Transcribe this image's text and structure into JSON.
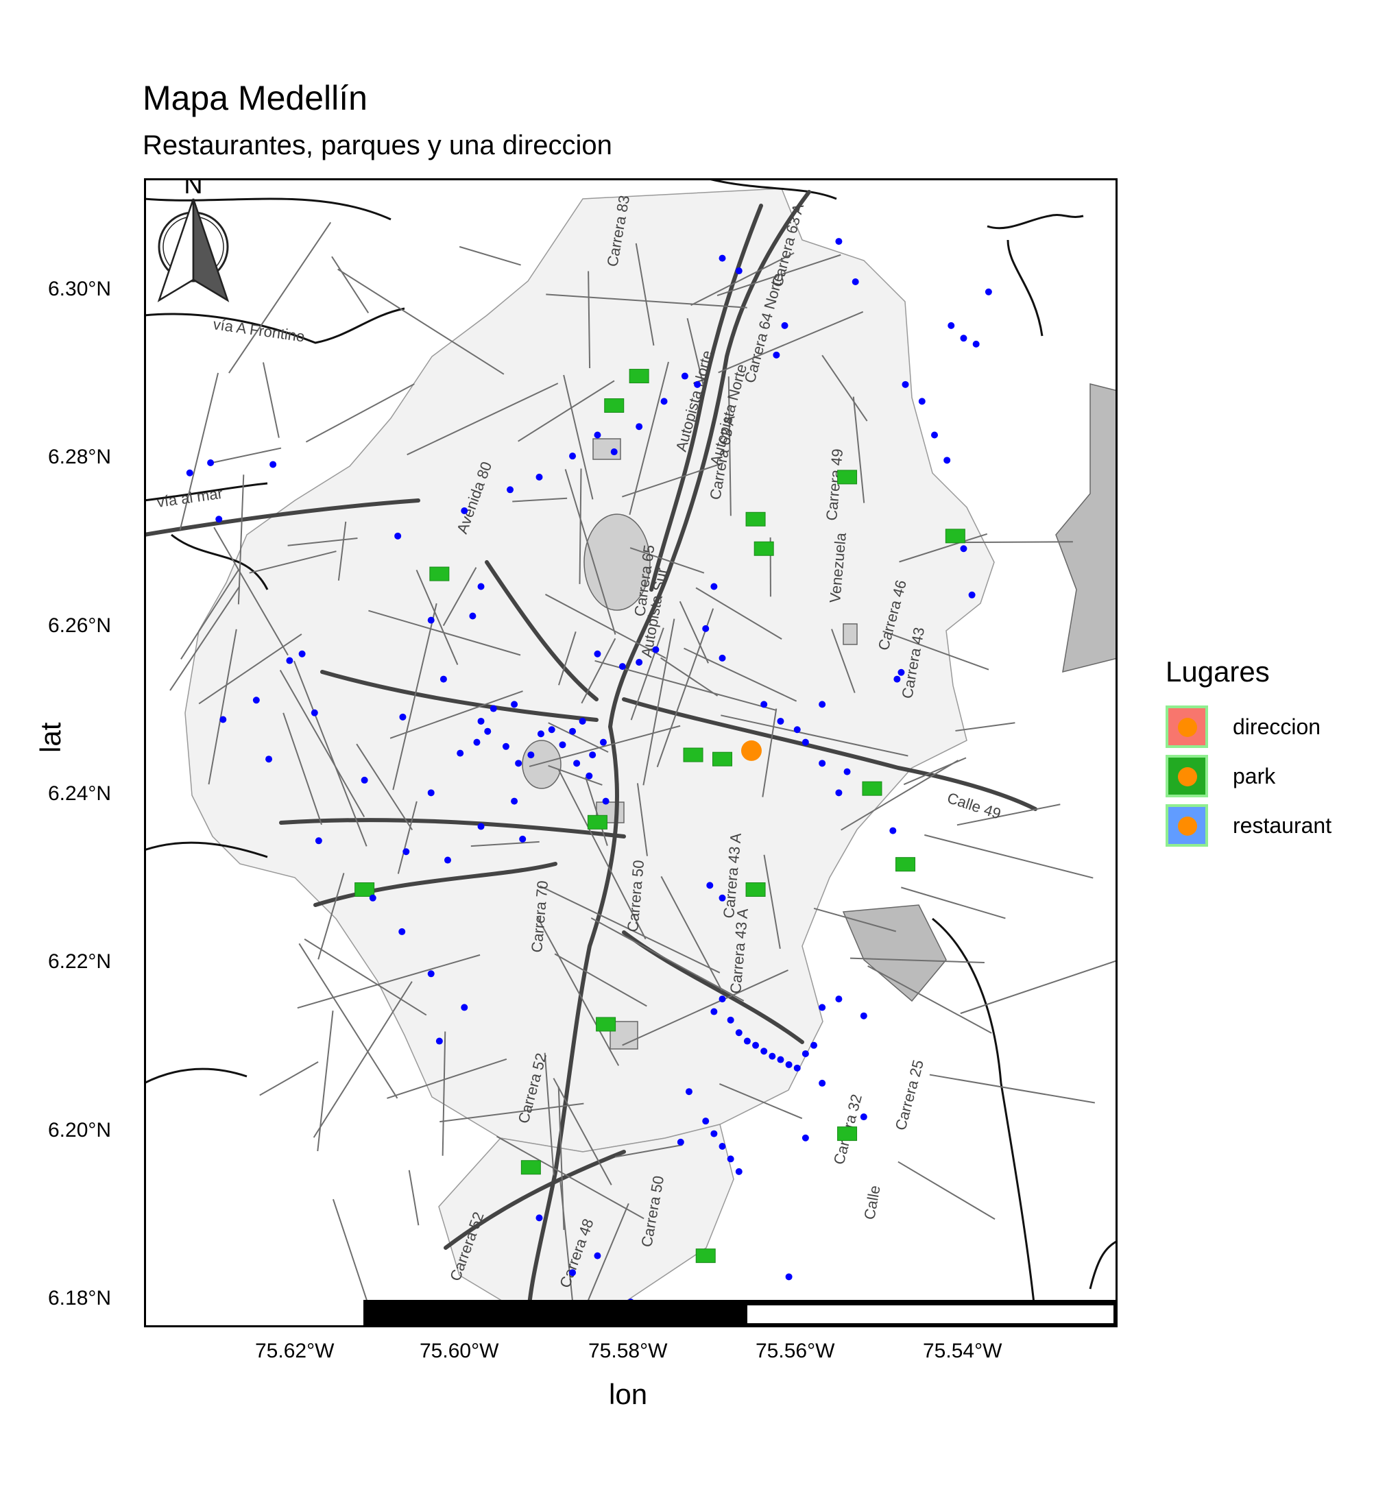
{
  "title": "Mapa Medellín",
  "subtitle": "Restaurantes, parques y una direccion",
  "x_axis_title": "lon",
  "y_axis_title": "lat",
  "x_ticks": [
    "75.62°W",
    "75.60°W",
    "75.58°W",
    "75.56°W",
    "75.54°W"
  ],
  "y_ticks": [
    "6.30°N",
    "6.28°N",
    "6.26°N",
    "6.24°N",
    "6.22°N",
    "6.20°N",
    "6.18°N"
  ],
  "north_arrow_label": "N",
  "legend": {
    "title": "Lugares",
    "items": [
      {
        "label": "direccion",
        "fill": "#f8766d"
      },
      {
        "label": "park",
        "fill": "#22aa22"
      },
      {
        "label": "restaurant",
        "fill": "#619cff"
      }
    ]
  },
  "street_labels": [
    "vía A Frontino",
    "vía al mar",
    "Autopista Norte",
    "Autopista Norte",
    "Carrera 64 Norte",
    "Carrera 63 A",
    "Carrera 63 A",
    "Autopista Sur",
    "Avenida 80",
    "Carrera 65",
    "Carrera 49",
    "Venezuela",
    "Carrera 46",
    "Carrera 43",
    "Calle 49",
    "Carrera 70",
    "Carrera 52",
    "Carrera 52",
    "Carrera 48",
    "Carrera 43 A",
    "Carrera 43 A",
    "Carrera 32",
    "Carrera 25",
    "Carrera 50",
    "Carrera 50",
    "Calle",
    "Carrera 83"
  ],
  "colors": {
    "restaurant_points": "#0000ff",
    "direccion_point": "#ff8c00",
    "park_areas": "#22bb22",
    "roads": "#444444",
    "urban_area": "#f2f2f2"
  },
  "map_data": {
    "direccion": {
      "lon": -75.5665,
      "lat": 6.2445
    },
    "restaurants": [
      {
        "lon": -75.6084,
        "lat": 6.2485
      },
      {
        "lon": -75.6015,
        "lat": 6.2442
      },
      {
        "lon": -75.5995,
        "lat": 6.2455
      },
      {
        "lon": -75.5982,
        "lat": 6.2468
      },
      {
        "lon": -75.596,
        "lat": 6.245
      },
      {
        "lon": -75.5945,
        "lat": 6.243
      },
      {
        "lon": -75.593,
        "lat": 6.244
      },
      {
        "lon": -75.5918,
        "lat": 6.2465
      },
      {
        "lon": -75.5905,
        "lat": 6.247
      },
      {
        "lon": -75.5892,
        "lat": 6.2452
      },
      {
        "lon": -75.588,
        "lat": 6.2468
      },
      {
        "lon": -75.5868,
        "lat": 6.248
      },
      {
        "lon": -75.5856,
        "lat": 6.244
      },
      {
        "lon": -75.5843,
        "lat": 6.2455
      },
      {
        "lon": -75.599,
        "lat": 6.248
      },
      {
        "lon": -75.5975,
        "lat": 6.2495
      },
      {
        "lon": -75.595,
        "lat": 6.25
      },
      {
        "lon": -75.5875,
        "lat": 6.243
      },
      {
        "lon": -75.586,
        "lat": 6.2415
      },
      {
        "lon": -75.584,
        "lat": 6.2385
      },
      {
        "lon": -75.6035,
        "lat": 6.253
      },
      {
        "lon": -75.605,
        "lat": 6.26
      },
      {
        "lon": -75.6,
        "lat": 6.2605
      },
      {
        "lon": -75.599,
        "lat": 6.264
      },
      {
        "lon": -75.585,
        "lat": 6.256
      },
      {
        "lon": -75.582,
        "lat": 6.2545
      },
      {
        "lon": -75.58,
        "lat": 6.255
      },
      {
        "lon": -75.578,
        "lat": 6.2565
      },
      {
        "lon": -75.622,
        "lat": 6.2552
      },
      {
        "lon": -75.6205,
        "lat": 6.256
      },
      {
        "lon": -75.619,
        "lat": 6.249
      },
      {
        "lon": -75.6245,
        "lat": 6.2435
      },
      {
        "lon": -75.626,
        "lat": 6.2505
      },
      {
        "lon": -75.63,
        "lat": 6.2482
      },
      {
        "lon": -75.613,
        "lat": 6.241
      },
      {
        "lon": -75.605,
        "lat": 6.2395
      },
      {
        "lon": -75.595,
        "lat": 6.2385
      },
      {
        "lon": -75.599,
        "lat": 6.2355
      },
      {
        "lon": -75.594,
        "lat": 6.234
      },
      {
        "lon": -75.608,
        "lat": 6.2325
      },
      {
        "lon": -75.603,
        "lat": 6.2315
      },
      {
        "lon": -75.612,
        "lat": 6.227
      },
      {
        "lon": -75.6085,
        "lat": 6.223
      },
      {
        "lon": -75.605,
        "lat": 6.218
      },
      {
        "lon": -75.601,
        "lat": 6.214
      },
      {
        "lon": -75.604,
        "lat": 6.21
      },
      {
        "lon": -75.6185,
        "lat": 6.2338
      },
      {
        "lon": -75.572,
        "lat": 6.259
      },
      {
        "lon": -75.571,
        "lat": 6.264
      },
      {
        "lon": -75.57,
        "lat": 6.2555
      },
      {
        "lon": -75.565,
        "lat": 6.25
      },
      {
        "lon": -75.563,
        "lat": 6.248
      },
      {
        "lon": -75.561,
        "lat": 6.247
      },
      {
        "lon": -75.56,
        "lat": 6.2455
      },
      {
        "lon": -75.558,
        "lat": 6.25
      },
      {
        "lon": -75.556,
        "lat": 6.2395
      },
      {
        "lon": -75.558,
        "lat": 6.243
      },
      {
        "lon": -75.549,
        "lat": 6.253
      },
      {
        "lon": -75.5485,
        "lat": 6.2538
      },
      {
        "lon": -75.5495,
        "lat": 6.235
      },
      {
        "lon": -75.555,
        "lat": 6.242
      },
      {
        "lon": -75.54,
        "lat": 6.263
      },
      {
        "lon": -75.541,
        "lat": 6.2685
      },
      {
        "lon": -75.543,
        "lat": 6.279
      },
      {
        "lon": -75.5445,
        "lat": 6.282
      },
      {
        "lon": -75.546,
        "lat": 6.286
      },
      {
        "lon": -75.548,
        "lat": 6.288
      },
      {
        "lon": -75.538,
        "lat": 6.299
      },
      {
        "lon": -75.5395,
        "lat": 6.2928
      },
      {
        "lon": -75.541,
        "lat": 6.2935
      },
      {
        "lon": -75.5425,
        "lat": 6.295
      },
      {
        "lon": -75.554,
        "lat": 6.3002
      },
      {
        "lon": -75.556,
        "lat": 6.305
      },
      {
        "lon": -75.5625,
        "lat": 6.295
      },
      {
        "lon": -75.5635,
        "lat": 6.2915
      },
      {
        "lon": -75.568,
        "lat": 6.3015
      },
      {
        "lon": -75.57,
        "lat": 6.303
      },
      {
        "lon": -75.573,
        "lat": 6.288
      },
      {
        "lon": -75.5745,
        "lat": 6.289
      },
      {
        "lon": -75.577,
        "lat": 6.286
      },
      {
        "lon": -75.58,
        "lat": 6.283
      },
      {
        "lon": -75.583,
        "lat": 6.28
      },
      {
        "lon": -75.585,
        "lat": 6.282
      },
      {
        "lon": -75.588,
        "lat": 6.2795
      },
      {
        "lon": -75.592,
        "lat": 6.277
      },
      {
        "lon": -75.5955,
        "lat": 6.2755
      },
      {
        "lon": -75.601,
        "lat": 6.273
      },
      {
        "lon": -75.609,
        "lat": 6.27
      },
      {
        "lon": -75.624,
        "lat": 6.2785
      },
      {
        "lon": -75.6315,
        "lat": 6.2787
      },
      {
        "lon": -75.634,
        "lat": 6.2775
      },
      {
        "lon": -75.6305,
        "lat": 6.272
      },
      {
        "lon": -75.57,
        "lat": 6.215
      },
      {
        "lon": -75.571,
        "lat": 6.2135
      },
      {
        "lon": -75.569,
        "lat": 6.2125
      },
      {
        "lon": -75.568,
        "lat": 6.211
      },
      {
        "lon": -75.567,
        "lat": 6.21
      },
      {
        "lon": -75.566,
        "lat": 6.2095
      },
      {
        "lon": -75.565,
        "lat": 6.2088
      },
      {
        "lon": -75.564,
        "lat": 6.2082
      },
      {
        "lon": -75.563,
        "lat": 6.2078
      },
      {
        "lon": -75.562,
        "lat": 6.2072
      },
      {
        "lon": -75.561,
        "lat": 6.2068
      },
      {
        "lon": -75.56,
        "lat": 6.2085
      },
      {
        "lon": -75.559,
        "lat": 6.2095
      },
      {
        "lon": -75.558,
        "lat": 6.214
      },
      {
        "lon": -75.556,
        "lat": 6.215
      },
      {
        "lon": -75.553,
        "lat": 6.213
      },
      {
        "lon": -75.572,
        "lat": 6.2005
      },
      {
        "lon": -75.571,
        "lat": 6.199
      },
      {
        "lon": -75.57,
        "lat": 6.1975
      },
      {
        "lon": -75.569,
        "lat": 6.196
      },
      {
        "lon": -75.568,
        "lat": 6.1945
      },
      {
        "lon": -75.575,
        "lat": 6.198
      },
      {
        "lon": -75.574,
        "lat": 6.204
      },
      {
        "lon": -75.56,
        "lat": 6.1985
      },
      {
        "lon": -75.553,
        "lat": 6.201
      },
      {
        "lon": -75.558,
        "lat": 6.205
      },
      {
        "lon": -75.562,
        "lat": 6.182
      },
      {
        "lon": -75.585,
        "lat": 6.1845
      },
      {
        "lon": -75.588,
        "lat": 6.1825
      },
      {
        "lon": -75.592,
        "lat": 6.189
      },
      {
        "lon": -75.581,
        "lat": 6.179
      },
      {
        "lon": -75.583,
        "lat": 6.1785
      },
      {
        "lon": -75.586,
        "lat": 6.1775
      },
      {
        "lon": -75.57,
        "lat": 6.227
      },
      {
        "lon": -75.5715,
        "lat": 6.2285
      }
    ],
    "parks": [
      {
        "lon": -75.566,
        "lat": 6.272
      },
      {
        "lon": -75.565,
        "lat": 6.2685
      },
      {
        "lon": -75.58,
        "lat": 6.289
      },
      {
        "lon": -75.583,
        "lat": 6.2855
      },
      {
        "lon": -75.604,
        "lat": 6.2655
      },
      {
        "lon": -75.555,
        "lat": 6.277
      },
      {
        "lon": -75.552,
        "lat": 6.24
      },
      {
        "lon": -75.548,
        "lat": 6.231
      },
      {
        "lon": -75.57,
        "lat": 6.2435
      },
      {
        "lon": -75.5735,
        "lat": 6.244
      },
      {
        "lon": -75.566,
        "lat": 6.228
      },
      {
        "lon": -75.585,
        "lat": 6.236
      },
      {
        "lon": -75.613,
        "lat": 6.228
      },
      {
        "lon": -75.555,
        "lat": 6.199
      },
      {
        "lon": -75.572,
        "lat": 6.1845
      },
      {
        "lon": -75.584,
        "lat": 6.212
      },
      {
        "lon": -75.593,
        "lat": 6.195
      },
      {
        "lon": -75.542,
        "lat": 6.27
      }
    ]
  }
}
